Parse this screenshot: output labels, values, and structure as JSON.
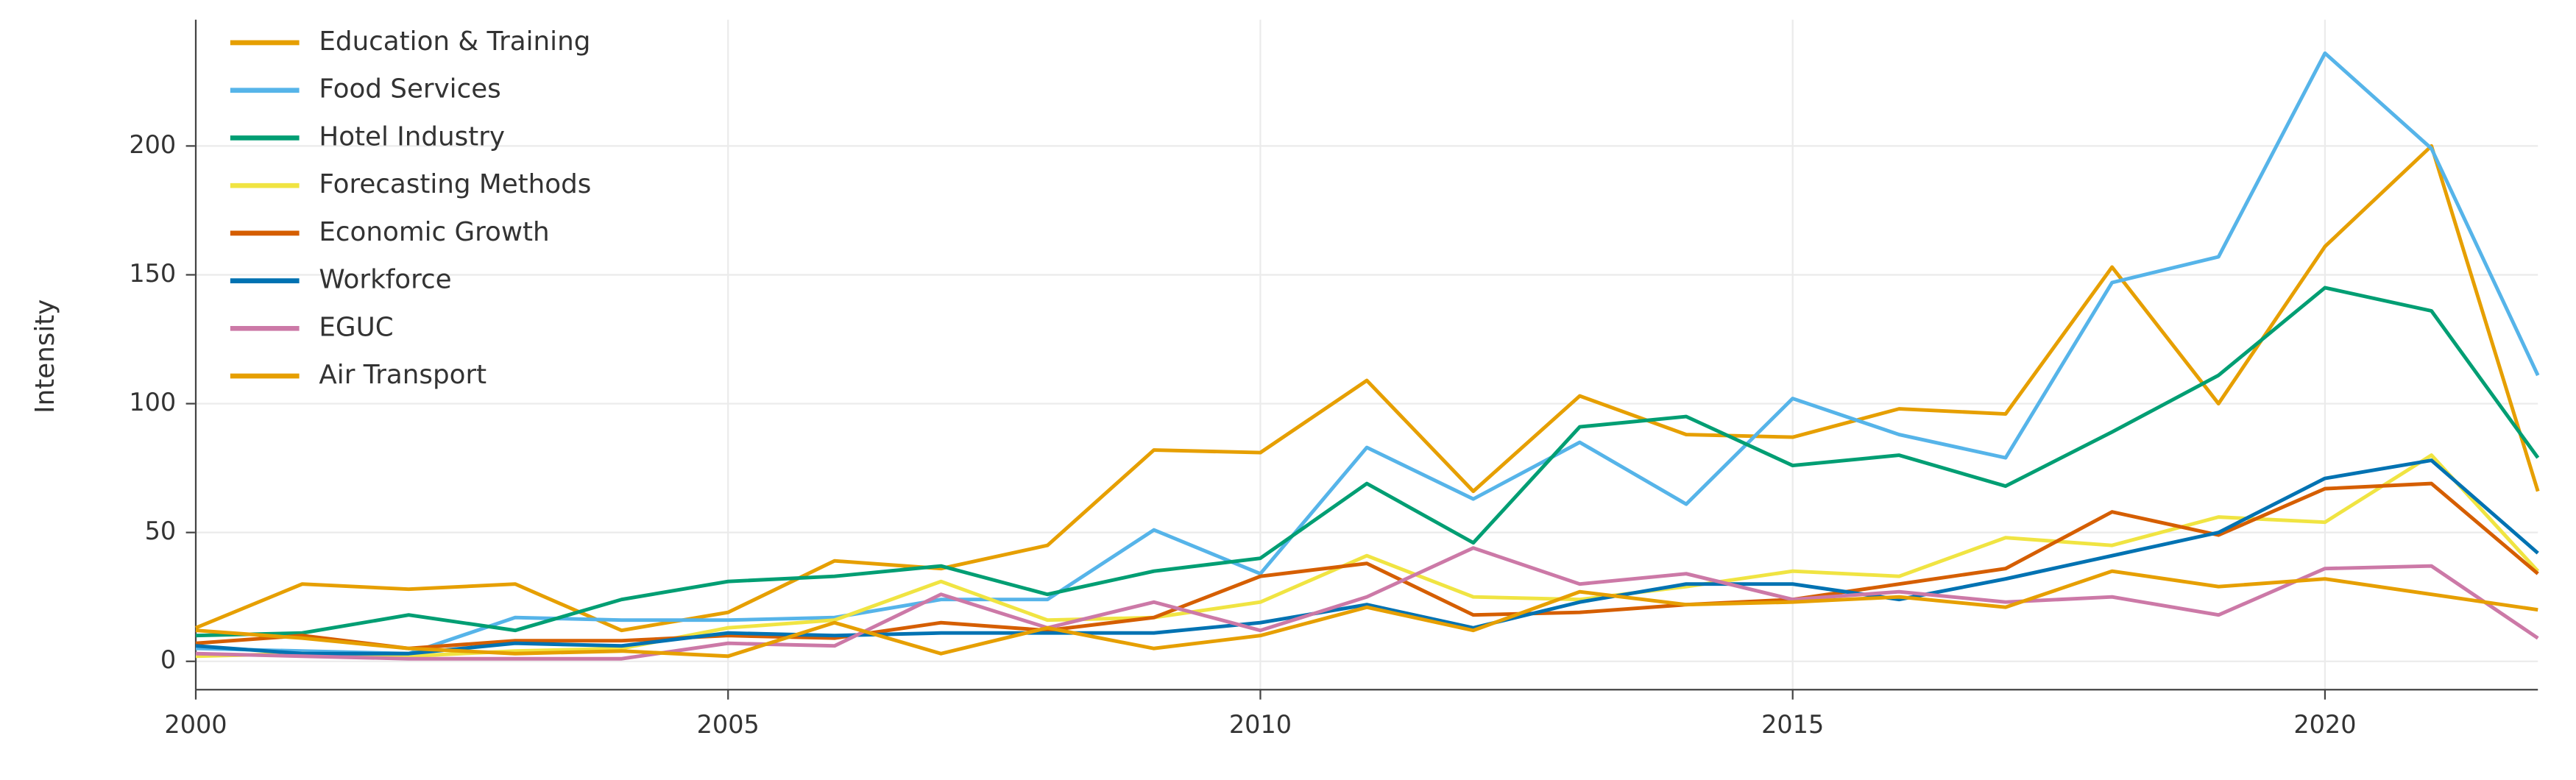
{
  "chart_data": {
    "type": "line",
    "y_label": "Intensity",
    "x": [
      2000,
      2001,
      2002,
      2003,
      2004,
      2005,
      2006,
      2007,
      2008,
      2009,
      2010,
      2011,
      2012,
      2013,
      2014,
      2015,
      2016,
      2017,
      2018,
      2019,
      2020,
      2021,
      2022
    ],
    "xlim": [
      2000,
      2022
    ],
    "xticks": [
      2000,
      2005,
      2010,
      2015,
      2020
    ],
    "ylim": [
      -11,
      249
    ],
    "yticks": [
      0,
      50,
      100,
      150,
      200
    ],
    "grid": true,
    "legend": "top-left",
    "series": [
      {
        "name": "Education & Training",
        "color": "#E69F00",
        "values": [
          13,
          30,
          28,
          30,
          12,
          19,
          39,
          36,
          45,
          82,
          81,
          109,
          66,
          103,
          88,
          87,
          98,
          96,
          153,
          100,
          161,
          200,
          66
        ]
      },
      {
        "name": "Food Services",
        "color": "#56B4E9",
        "values": [
          5,
          4,
          3,
          17,
          16,
          16,
          17,
          24,
          24,
          51,
          34,
          83,
          63,
          85,
          61,
          102,
          88,
          79,
          147,
          157,
          236,
          199,
          111
        ]
      },
      {
        "name": "Hotel Industry",
        "color": "#009E73",
        "values": [
          10,
          11,
          18,
          12,
          24,
          31,
          33,
          37,
          26,
          35,
          40,
          69,
          46,
          91,
          95,
          76,
          80,
          68,
          89,
          111,
          145,
          136,
          79
        ]
      },
      {
        "name": "Forecasting Methods",
        "color": "#F0E442",
        "values": [
          2,
          3,
          2,
          4,
          5,
          13,
          16,
          31,
          16,
          17,
          23,
          41,
          25,
          24,
          29,
          35,
          33,
          48,
          45,
          56,
          54,
          80,
          35
        ]
      },
      {
        "name": "Economic Growth",
        "color": "#D55E00",
        "values": [
          7,
          10,
          5,
          8,
          8,
          10,
          9,
          15,
          12,
          17,
          33,
          38,
          18,
          19,
          22,
          24,
          30,
          36,
          58,
          49,
          67,
          69,
          34
        ]
      },
      {
        "name": "Workforce",
        "color": "#0072B2",
        "values": [
          6,
          3,
          3,
          7,
          6,
          11,
          10,
          11,
          11,
          11,
          15,
          22,
          13,
          23,
          30,
          30,
          24,
          32,
          41,
          50,
          71,
          78,
          42
        ]
      },
      {
        "name": "EGUC",
        "color": "#CC79A7",
        "values": [
          3,
          2,
          1,
          1,
          1,
          7,
          6,
          26,
          13,
          23,
          12,
          25,
          44,
          30,
          34,
          24,
          27,
          23,
          25,
          18,
          36,
          37,
          9
        ]
      },
      {
        "name": "Air Transport",
        "color": "#E69F00",
        "values": [
          12,
          9,
          5,
          3,
          4,
          2,
          15,
          3,
          13,
          5,
          10,
          21,
          12,
          27,
          22,
          23,
          25,
          21,
          35,
          29,
          32,
          26,
          20
        ]
      }
    ]
  }
}
